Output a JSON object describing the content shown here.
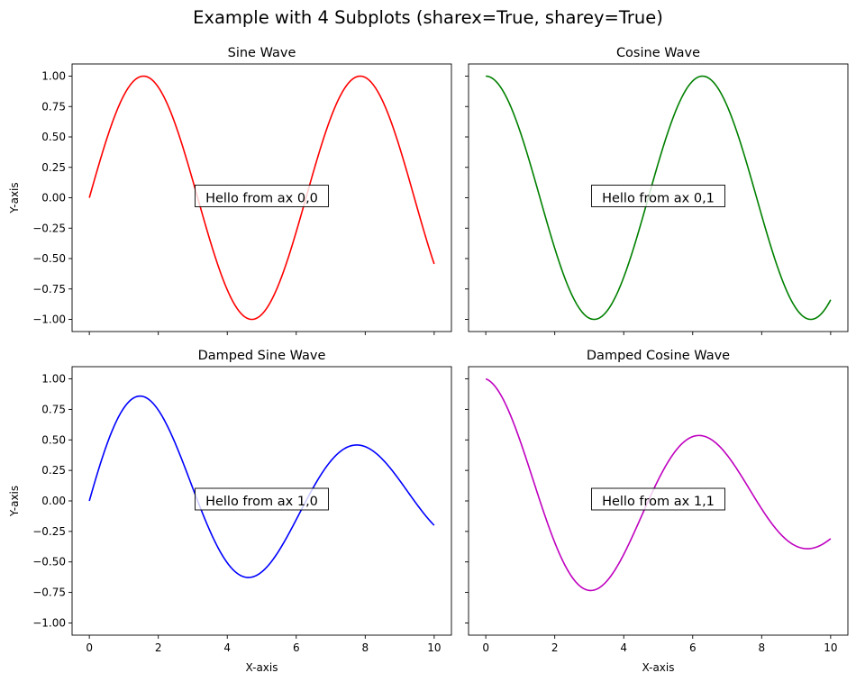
{
  "suptitle": "Example with 4 Subplots (sharex=True, sharey=True)",
  "chart_data": [
    {
      "type": "line",
      "title": "Sine Wave",
      "function": "sin(x)",
      "xlim": [
        0,
        10
      ],
      "ylim": [
        -1.1,
        1.1
      ],
      "xlabel": "",
      "ylabel": "Y-axis",
      "color": "#ff0000",
      "annotation": "Hello from ax 0,0",
      "x": [
        0,
        0.5,
        1,
        1.5,
        2,
        2.5,
        3,
        3.5,
        4,
        4.5,
        5,
        5.5,
        6,
        6.5,
        7,
        7.5,
        8,
        8.5,
        9,
        9.5,
        10
      ],
      "y": [
        0.0,
        0.479,
        0.841,
        0.997,
        0.909,
        0.598,
        0.141,
        -0.351,
        -0.757,
        -0.978,
        -0.959,
        -0.706,
        -0.279,
        0.215,
        0.657,
        0.938,
        0.989,
        0.798,
        0.412,
        -0.075,
        -0.544
      ]
    },
    {
      "type": "line",
      "title": "Cosine Wave",
      "function": "cos(x)",
      "xlim": [
        0,
        10
      ],
      "ylim": [
        -1.1,
        1.1
      ],
      "xlabel": "",
      "ylabel": "",
      "color": "#008000",
      "annotation": "Hello from ax 0,1",
      "x": [
        0,
        0.5,
        1,
        1.5,
        2,
        2.5,
        3,
        3.5,
        4,
        4.5,
        5,
        5.5,
        6,
        6.5,
        7,
        7.5,
        8,
        8.5,
        9,
        9.5,
        10
      ],
      "y": [
        1.0,
        0.878,
        0.54,
        0.071,
        -0.416,
        -0.801,
        -0.99,
        -0.936,
        -0.654,
        -0.211,
        0.284,
        0.709,
        0.96,
        0.977,
        0.754,
        0.347,
        -0.146,
        -0.602,
        -0.911,
        -0.997,
        -0.839
      ]
    },
    {
      "type": "line",
      "title": "Damped Sine Wave",
      "function": "exp(-0.1x)*sin(x)",
      "xlim": [
        0,
        10
      ],
      "ylim": [
        -1.1,
        1.1
      ],
      "xlabel": "X-axis",
      "ylabel": "Y-axis",
      "color": "#0000ff",
      "annotation": "Hello from ax 1,0",
      "x": [
        0,
        0.5,
        1,
        1.5,
        2,
        2.5,
        3,
        3.5,
        4,
        4.5,
        5,
        5.5,
        6,
        6.5,
        7,
        7.5,
        8,
        8.5,
        9,
        9.5,
        10
      ],
      "y": [
        0.0,
        0.456,
        0.761,
        0.858,
        0.744,
        0.466,
        0.105,
        -0.247,
        -0.507,
        -0.623,
        -0.582,
        -0.408,
        -0.153,
        0.112,
        0.326,
        0.443,
        0.444,
        0.341,
        0.167,
        -0.029,
        -0.2
      ]
    },
    {
      "type": "line",
      "title": "Damped Cosine Wave",
      "function": "exp(-0.1x)*cos(x)",
      "xlim": [
        0,
        10
      ],
      "ylim": [
        -1.1,
        1.1
      ],
      "xlabel": "X-axis",
      "ylabel": "",
      "color": "#bf00bf",
      "annotation": "Hello from ax 1,1",
      "x": [
        0,
        0.5,
        1,
        1.5,
        2,
        2.5,
        3,
        3.5,
        4,
        4.5,
        5,
        5.5,
        6,
        6.5,
        7,
        7.5,
        8,
        8.5,
        9,
        9.5,
        10
      ],
      "y": [
        1.0,
        0.835,
        0.489,
        0.061,
        -0.34,
        -0.624,
        -0.733,
        -0.661,
        -0.439,
        -0.135,
        0.172,
        0.41,
        0.527,
        0.51,
        0.374,
        0.164,
        -0.066,
        -0.258,
        -0.37,
        -0.385,
        -0.309
      ]
    }
  ],
  "axes": {
    "xticks": [
      "0",
      "2",
      "4",
      "6",
      "8",
      "10"
    ],
    "yticks": [
      "1.00",
      "0.75",
      "0.50",
      "0.25",
      "0.00",
      "−0.25",
      "−0.50",
      "−0.75",
      "−1.00"
    ]
  }
}
